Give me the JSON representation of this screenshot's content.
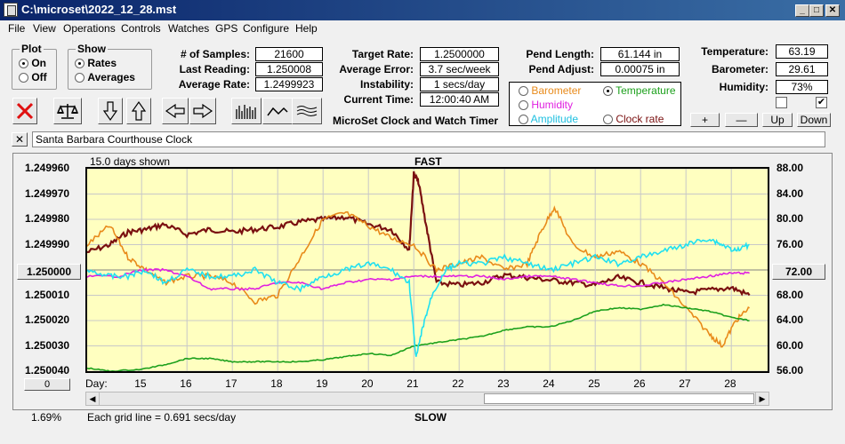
{
  "window": {
    "title": "C:\\microset\\2022_12_28.mst"
  },
  "menu": [
    "File",
    "View",
    "Operations",
    "Controls",
    "Watches",
    "GPS",
    "Configure",
    "Help"
  ],
  "plot_group": {
    "legend": "Plot",
    "on": "On",
    "off": "Off",
    "selected": "On"
  },
  "show_group": {
    "legend": "Show",
    "rates": "Rates",
    "averages": "Averages",
    "selected": "Rates"
  },
  "stats": {
    "samples_label": "# of Samples:",
    "samples": "21600",
    "last_reading_label": "Last Reading:",
    "last_reading": "1.250008",
    "average_rate_label": "Average Rate:",
    "average_rate": "1.2499923",
    "target_rate_label": "Target Rate:",
    "target_rate": "1.2500000",
    "average_error_label": "Average Error:",
    "average_error": "3.7 sec/week",
    "instability_label": "Instability:",
    "instability": "1 secs/day",
    "current_time_label": "Current Time:",
    "current_time": "12:00:40 AM",
    "pend_length_label": "Pend Length:",
    "pend_length": "61.144 in",
    "pend_adjust_label": "Pend Adjust:",
    "pend_adjust": "0.00075 in",
    "temperature_label": "Temperature:",
    "temperature": "63.19",
    "barometer_label": "Barometer:",
    "barometer": "29.61",
    "humidity_label": "Humidity:",
    "humidity": "73%"
  },
  "app_caption": "MicroSet Clock and Watch Timer",
  "series_select": {
    "barometer": "Barometer",
    "temperature": "Temperature",
    "humidity": "Humidity",
    "amplitude": "Amplitude",
    "clock_rate": "Clock rate",
    "selected": "Temperature"
  },
  "adjust_buttons": {
    "plus": "+",
    "minus": "—",
    "up": "Up",
    "down": "Down"
  },
  "clock_name": "Santa Barbara Courthouse Clock",
  "close_symbol": "✕",
  "chart": {
    "days_shown": "15.0 days shown",
    "fast": "FAST",
    "slow": "SLOW",
    "grid_note": "Each grid line = 0.691 secs/day",
    "day_label": "Day:",
    "center_value": "1.250000",
    "center_right": "72.00",
    "zero_button": "0",
    "percent": "1.69%"
  },
  "colors": {
    "barometer": "#e88a1a",
    "temperature": "#1ca01c",
    "humidity": "#e020e0",
    "amplitude": "#20e0f0",
    "clock_rate": "#7a1010",
    "plot_bg": "#ffffc0"
  },
  "chart_data": {
    "type": "line",
    "x_label": "Day:",
    "x_ticks": [
      "15",
      "16",
      "17",
      "18",
      "19",
      "20",
      "21",
      "22",
      "23",
      "24",
      "25",
      "26",
      "27",
      "28"
    ],
    "y_left_ticks": [
      "1.249960",
      "1.249970",
      "1.249980",
      "1.249990",
      "1.250000",
      "1.250010",
      "1.250020",
      "1.250030",
      "1.250040"
    ],
    "y_left_range": [
      1.24996,
      1.25004
    ],
    "y_right_ticks": [
      "88.00",
      "84.00",
      "80.00",
      "76.00",
      "72.00",
      "68.00",
      "64.00",
      "60.00",
      "56.00"
    ],
    "y_right_range": [
      56,
      88
    ],
    "x_range": [
      14.3,
      29.3
    ],
    "series": [
      {
        "name": "Clock rate",
        "color": "#7a1010",
        "axis": "left",
        "x": [
          14.3,
          14.8,
          15.2,
          15.6,
          16.0,
          16.5,
          17.0,
          17.5,
          18.0,
          18.5,
          19.0,
          19.5,
          20.0,
          20.5,
          21.0,
          21.4,
          21.5,
          21.6,
          21.8,
          22.0,
          22.5,
          23.0,
          23.5,
          24.0,
          24.5,
          25.0,
          25.5,
          26.0,
          26.5,
          27.0,
          27.5,
          28.0,
          28.5,
          28.9
        ],
        "y": [
          1.249993,
          1.24999,
          1.249985,
          1.249984,
          1.249982,
          1.249986,
          1.249984,
          1.249985,
          1.249984,
          1.249983,
          1.249981,
          1.24998,
          1.249979,
          1.249982,
          1.249984,
          1.249992,
          1.249962,
          1.249965,
          1.249985,
          1.250005,
          1.250006,
          1.250005,
          1.250002,
          1.250003,
          1.250004,
          1.250005,
          1.250006,
          1.250003,
          1.250005,
          1.250007,
          1.250009,
          1.250008,
          1.250007,
          1.25001
        ]
      },
      {
        "name": "Barometer",
        "color": "#e88a1a",
        "axis": "right",
        "x": [
          14.3,
          14.8,
          15.2,
          15.6,
          16.0,
          16.5,
          17.0,
          17.5,
          18.0,
          18.5,
          19.0,
          19.5,
          20.0,
          20.5,
          21.0,
          21.5,
          22.0,
          22.5,
          23.0,
          23.5,
          24.0,
          24.3,
          24.6,
          25.0,
          25.5,
          26.0,
          26.5,
          27.0,
          27.5,
          28.0,
          28.3,
          28.6,
          28.9
        ],
        "y": [
          76,
          79,
          74,
          72,
          70,
          71,
          71,
          70,
          67,
          68,
          74,
          80,
          81,
          79,
          77,
          76,
          72,
          73,
          74,
          72,
          73,
          78,
          82,
          76,
          74,
          75,
          73,
          70,
          66,
          62,
          60,
          64,
          66
        ]
      },
      {
        "name": "Temperature",
        "color": "#1ca01c",
        "axis": "right",
        "x": [
          14.3,
          14.8,
          15.5,
          16.0,
          16.5,
          17.0,
          17.5,
          18.0,
          18.5,
          19.0,
          19.5,
          20.0,
          20.5,
          21.0,
          21.5,
          22.0,
          22.5,
          23.0,
          23.5,
          24.0,
          24.5,
          25.0,
          25.5,
          26.0,
          26.5,
          27.0,
          27.5,
          28.0,
          28.5,
          28.9
        ],
        "y": [
          56.5,
          56,
          56.3,
          57,
          58,
          58,
          57.5,
          57.5,
          57.5,
          57.5,
          57.8,
          58.3,
          58.8,
          58.5,
          60,
          60.5,
          61,
          61.5,
          62.5,
          63,
          63,
          64,
          65.5,
          66,
          65.8,
          66.5,
          66,
          65.5,
          64.5,
          64
        ]
      },
      {
        "name": "Humidity",
        "color": "#e020e0",
        "axis": "right",
        "x": [
          14.3,
          15.0,
          15.5,
          16.0,
          16.5,
          17.0,
          17.5,
          18.0,
          18.5,
          19.0,
          19.5,
          20.0,
          20.5,
          21.0,
          21.5,
          22.0,
          22.5,
          23.0,
          23.5,
          24.0,
          24.5,
          25.0,
          25.5,
          26.0,
          26.5,
          27.0,
          27.5,
          28.0,
          28.5,
          28.9
        ],
        "y": [
          71,
          71,
          72,
          72,
          71,
          69,
          69,
          69,
          70,
          70,
          69,
          70,
          70.5,
          70.5,
          71,
          71,
          71,
          71,
          70.5,
          71,
          71,
          70.5,
          70,
          69.5,
          69.5,
          70,
          70.5,
          71,
          71.5,
          71.5
        ]
      },
      {
        "name": "Amplitude",
        "color": "#20e0f0",
        "axis": "right",
        "x": [
          14.3,
          14.8,
          15.2,
          15.6,
          16.0,
          16.5,
          17.0,
          17.5,
          18.0,
          18.5,
          19.0,
          19.5,
          20.0,
          20.5,
          21.0,
          21.4,
          21.55,
          21.7,
          21.9,
          22.2,
          22.5,
          23.0,
          23.5,
          24.0,
          24.5,
          25.0,
          25.5,
          26.0,
          26.5,
          27.0,
          27.5,
          28.0,
          28.3,
          28.6,
          28.9
        ],
        "y": [
          72,
          71,
          71,
          72,
          70,
          72,
          71,
          71,
          72,
          70,
          69,
          71,
          72,
          73,
          72,
          70,
          58,
          63,
          68,
          72,
          73,
          73,
          74,
          73,
          72,
          73,
          74,
          73,
          74,
          75,
          76,
          77,
          76,
          75,
          76
        ]
      }
    ]
  }
}
